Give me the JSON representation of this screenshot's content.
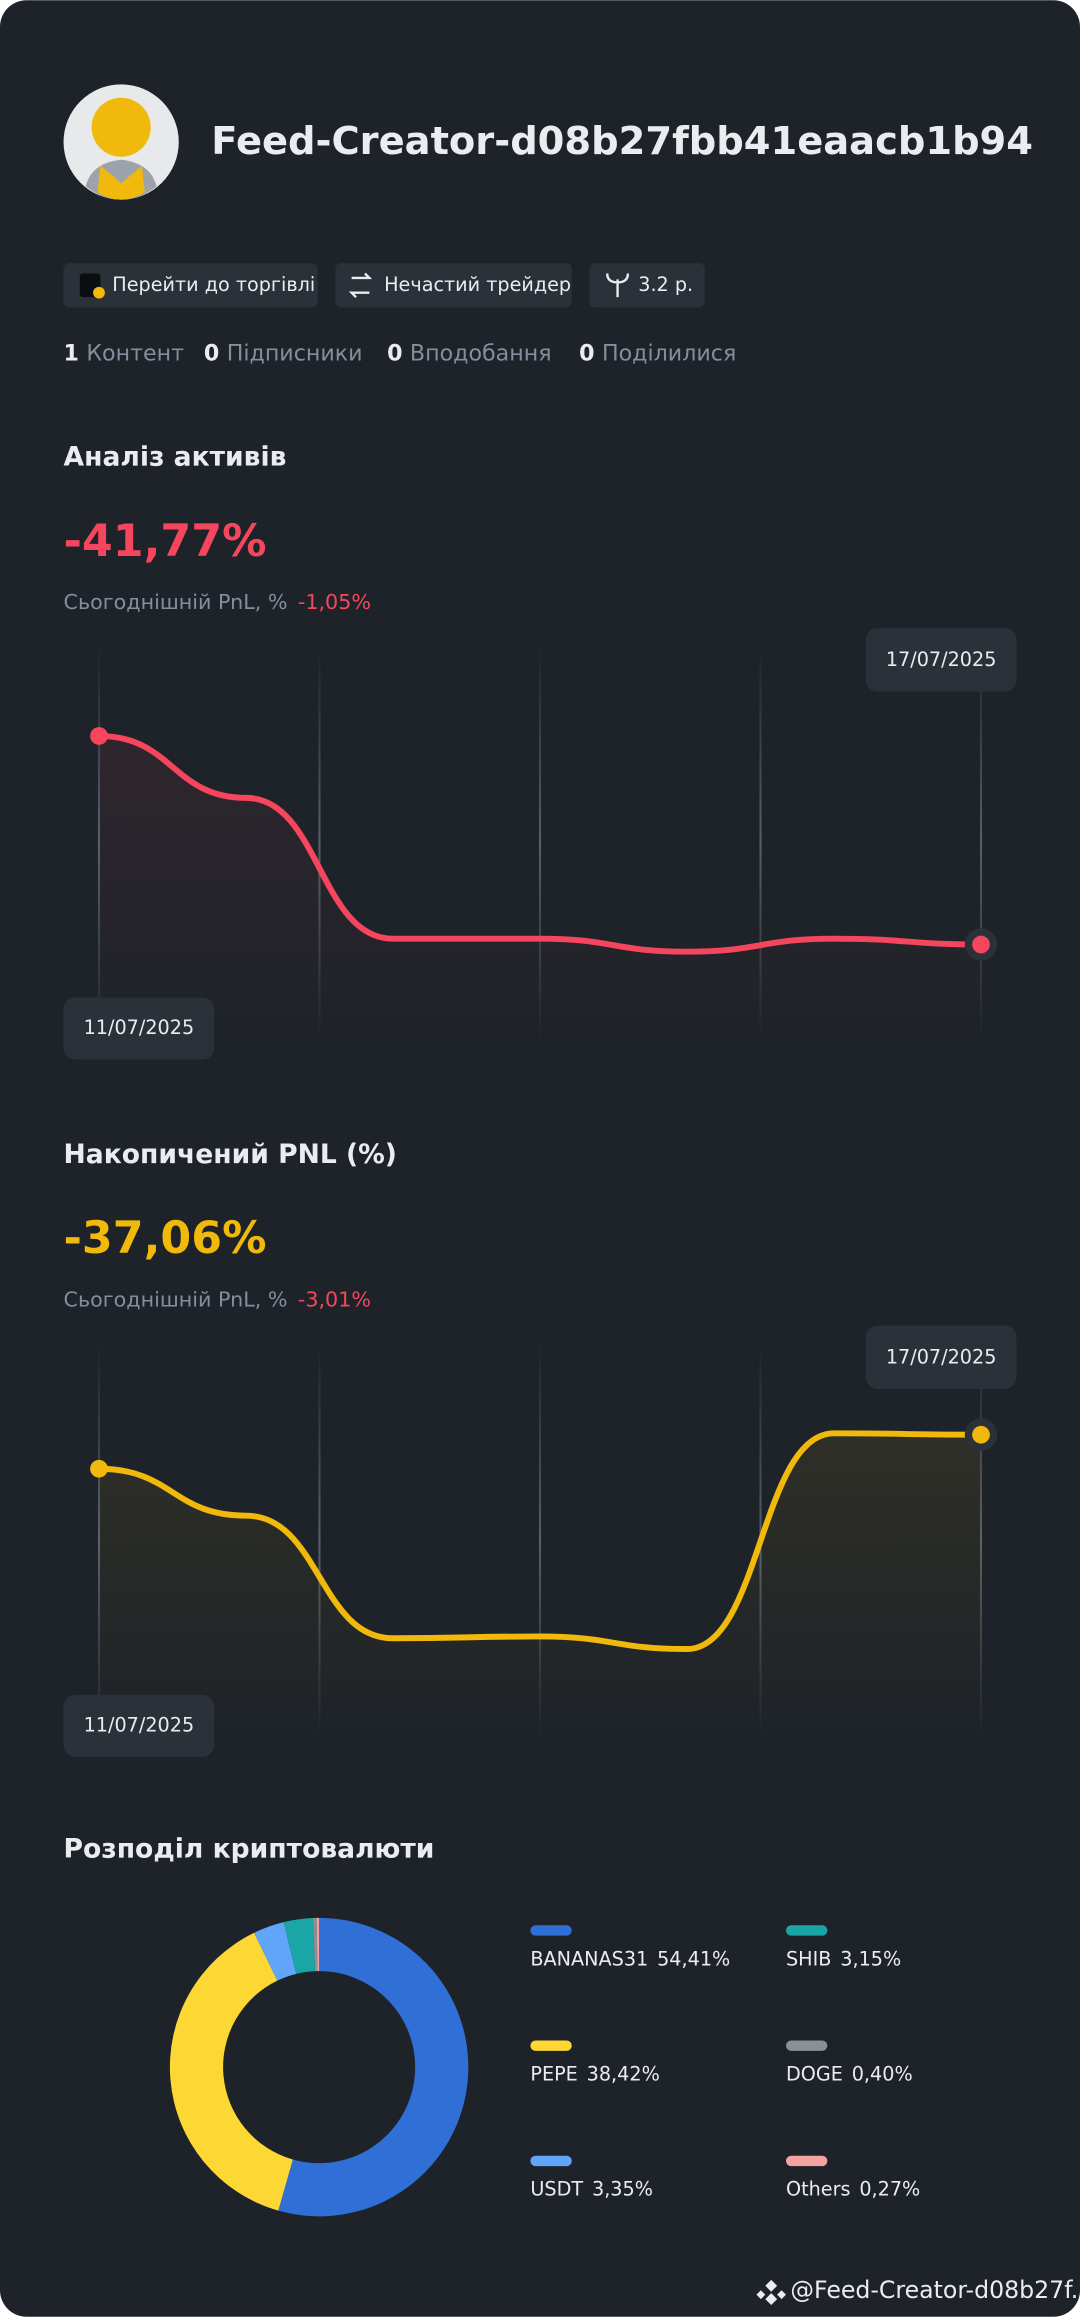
{
  "profile": {
    "name": "Feed-Creator-d08b27fbb41eaacb1b94",
    "badges": [
      "Перейти до торгівлі",
      "Нечастий трейдер",
      "3.2 р."
    ],
    "stats": [
      {
        "count": 1,
        "label": "Контент"
      },
      {
        "count": 0,
        "label": "Підписники"
      },
      {
        "count": 0,
        "label": "Вподобання"
      },
      {
        "count": 0,
        "label": "Поділилися"
      }
    ]
  },
  "chart_data": [
    {
      "type": "line",
      "title": "Аналіз активів",
      "headline": "-41,77%",
      "subtitle": "Сьогоднішній PnL, %",
      "change": "-1,05%",
      "categories": [
        "11/07/2025",
        null,
        null,
        null,
        null,
        null,
        "17/07/2025"
      ],
      "series": [
        {
          "color": "#f6465d",
          "values": [
            0,
            -12.4,
            -40.6,
            -40.6,
            -43.2,
            -40.6,
            -41.77
          ]
        }
      ]
    },
    {
      "type": "line",
      "title": "Накопичений PNL (%)",
      "headline": "-37,06%",
      "subtitle": "Сьогоднішній PnL, %",
      "change": "-3,01%",
      "categories": [
        "11/07/2025",
        null,
        null,
        null,
        null,
        null,
        "17/07/2025"
      ],
      "series": [
        {
          "color": "#f0b90b",
          "values": [
            -40.86,
            -46.1,
            -59.8,
            -59.6,
            -61.0,
            -36.9,
            -37.06
          ]
        }
      ]
    },
    {
      "type": "donut",
      "title": "Розподіл криптовалюти",
      "categories": [
        "BANANAS31",
        "PEPE",
        "USDT",
        "SHIB",
        "DOGE",
        "Others"
      ],
      "values": [
        54.41,
        38.42,
        3.35,
        3.15,
        0.4,
        0.27
      ],
      "value_labels": [
        "54,41%",
        "38,42%",
        "3,35%",
        "3,15%",
        "0,40%",
        "0,27%"
      ],
      "colors": [
        "#2f6fd6",
        "#fdd835",
        "#60a5fa",
        "#1aa6a6",
        "#8a8f98",
        "#f4a3a3"
      ]
    }
  ],
  "footer": "@Feed-Creator-d08b27f..."
}
